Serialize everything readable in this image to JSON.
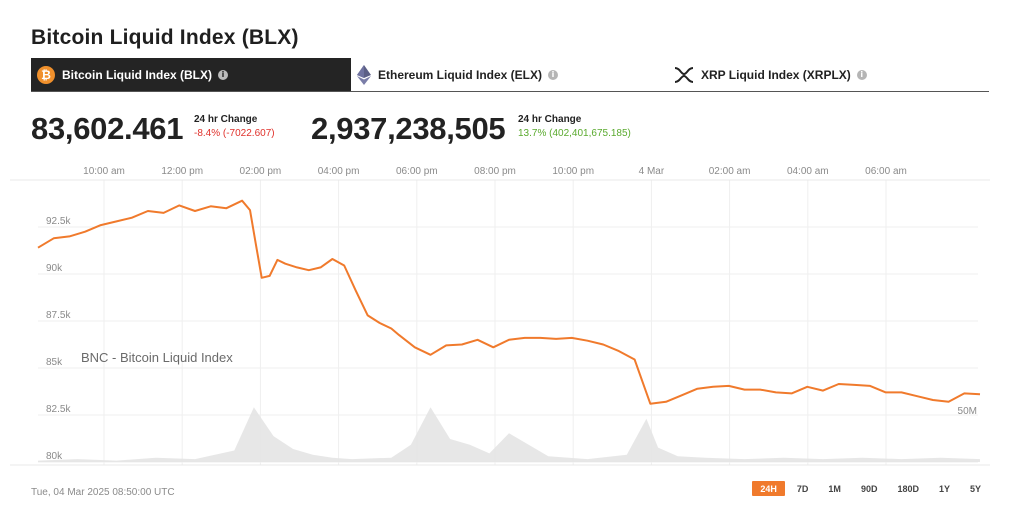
{
  "title": "Bitcoin Liquid Index (BLX)",
  "tabs": [
    {
      "label": "Bitcoin Liquid Index (BLX)",
      "icon": "bitcoin-icon",
      "active": true
    },
    {
      "label": "Ethereum Liquid Index (ELX)",
      "icon": "ethereum-icon",
      "active": false
    },
    {
      "label": "XRP Liquid Index (XRPLX)",
      "icon": "xrp-icon",
      "active": false
    }
  ],
  "info_glyph": "i",
  "price": {
    "value": "83,602.461",
    "change_label": "24 hr Change",
    "change": "-8.4% (-7022.607)"
  },
  "volume": {
    "value": "2,937,238,505",
    "change_label": "24 hr Change",
    "change": "13.7% (402,401,675.185)"
  },
  "timestamp": "Tue, 04 Mar 2025 08:50:00 UTC",
  "ranges": [
    "24H",
    "7D",
    "1M",
    "90D",
    "180D",
    "1Y",
    "5Y"
  ],
  "active_range": "24H",
  "colors": {
    "line": "#f07a2c",
    "volume": "#e4e4e4",
    "accent": "#f07a2c",
    "negative": "#e0312b",
    "positive": "#5aaa2e"
  },
  "chart_data": {
    "type": "line",
    "watermark": "BNC - Bitcoin Liquid Index",
    "x_ticks": [
      "10:00 am",
      "12:00 pm",
      "02:00 pm",
      "04:00 pm",
      "06:00 pm",
      "08:00 pm",
      "10:00 pm",
      "4 Mar",
      "02:00 am",
      "04:00 am",
      "06:00 am"
    ],
    "y_ticks": [
      "92.5k",
      "90k",
      "87.5k",
      "85k",
      "82.5k",
      "80k"
    ],
    "ylim": [
      80000,
      92500
    ],
    "volume_tick": "50M",
    "series": [
      {
        "x": [
          0,
          0.4,
          0.8,
          1.2,
          1.6,
          2.0,
          2.4,
          2.8,
          3.2,
          3.6,
          4.0,
          4.4,
          4.8,
          5.2,
          5.4,
          5.55,
          5.7,
          5.9,
          6.1,
          6.3,
          6.6,
          6.9,
          7.2,
          7.5,
          7.8,
          8.1,
          8.4,
          8.7,
          9.0,
          9.2,
          9.6,
          10.0,
          10.4,
          10.8,
          11.2,
          11.6,
          12.0,
          12.4,
          12.8,
          13.2,
          13.6,
          14.0,
          14.4,
          14.8,
          15.2,
          15.6,
          16.0,
          16.4,
          16.8,
          17.2,
          17.6,
          18.0,
          18.4,
          18.8,
          19.2,
          19.6,
          20.0,
          20.4,
          20.8,
          21.2,
          21.6,
          22.0,
          22.4,
          22.8,
          23.2,
          23.6,
          24.0
        ],
        "y": [
          91400,
          91900,
          92000,
          92250,
          92600,
          92800,
          93000,
          93350,
          93250,
          93650,
          93350,
          93600,
          93500,
          93900,
          93400,
          91600,
          89800,
          89900,
          90750,
          90550,
          90350,
          90200,
          90350,
          90800,
          90450,
          89100,
          87800,
          87400,
          87100,
          86750,
          86100,
          85700,
          86200,
          86250,
          86500,
          86100,
          86500,
          86600,
          86600,
          86550,
          86600,
          86450,
          86250,
          85900,
          85450,
          83100,
          83200,
          83550,
          83900,
          84000,
          84050,
          83850,
          83850,
          83700,
          83650,
          84000,
          83800,
          84150,
          84100,
          84050,
          83700,
          83700,
          83500,
          83300,
          83200,
          83650,
          83600
        ]
      }
    ],
    "volume": {
      "x": [
        0,
        1,
        2,
        3,
        4,
        5,
        5.5,
        6,
        6.5,
        7,
        7.5,
        8,
        9,
        9.5,
        10,
        10.5,
        11,
        11.5,
        12,
        13,
        14,
        15,
        15.5,
        15.8,
        16.3,
        17,
        18,
        19,
        20,
        21,
        22,
        23,
        24
      ],
      "y": [
        1,
        2,
        1,
        3,
        2,
        8,
        38,
        18,
        9,
        5,
        3,
        2,
        3,
        12,
        38,
        16,
        12,
        6,
        20,
        4,
        2,
        5,
        30,
        10,
        4,
        3,
        2,
        3,
        2,
        3,
        2,
        3,
        2
      ]
    },
    "volume_max": 50
  }
}
